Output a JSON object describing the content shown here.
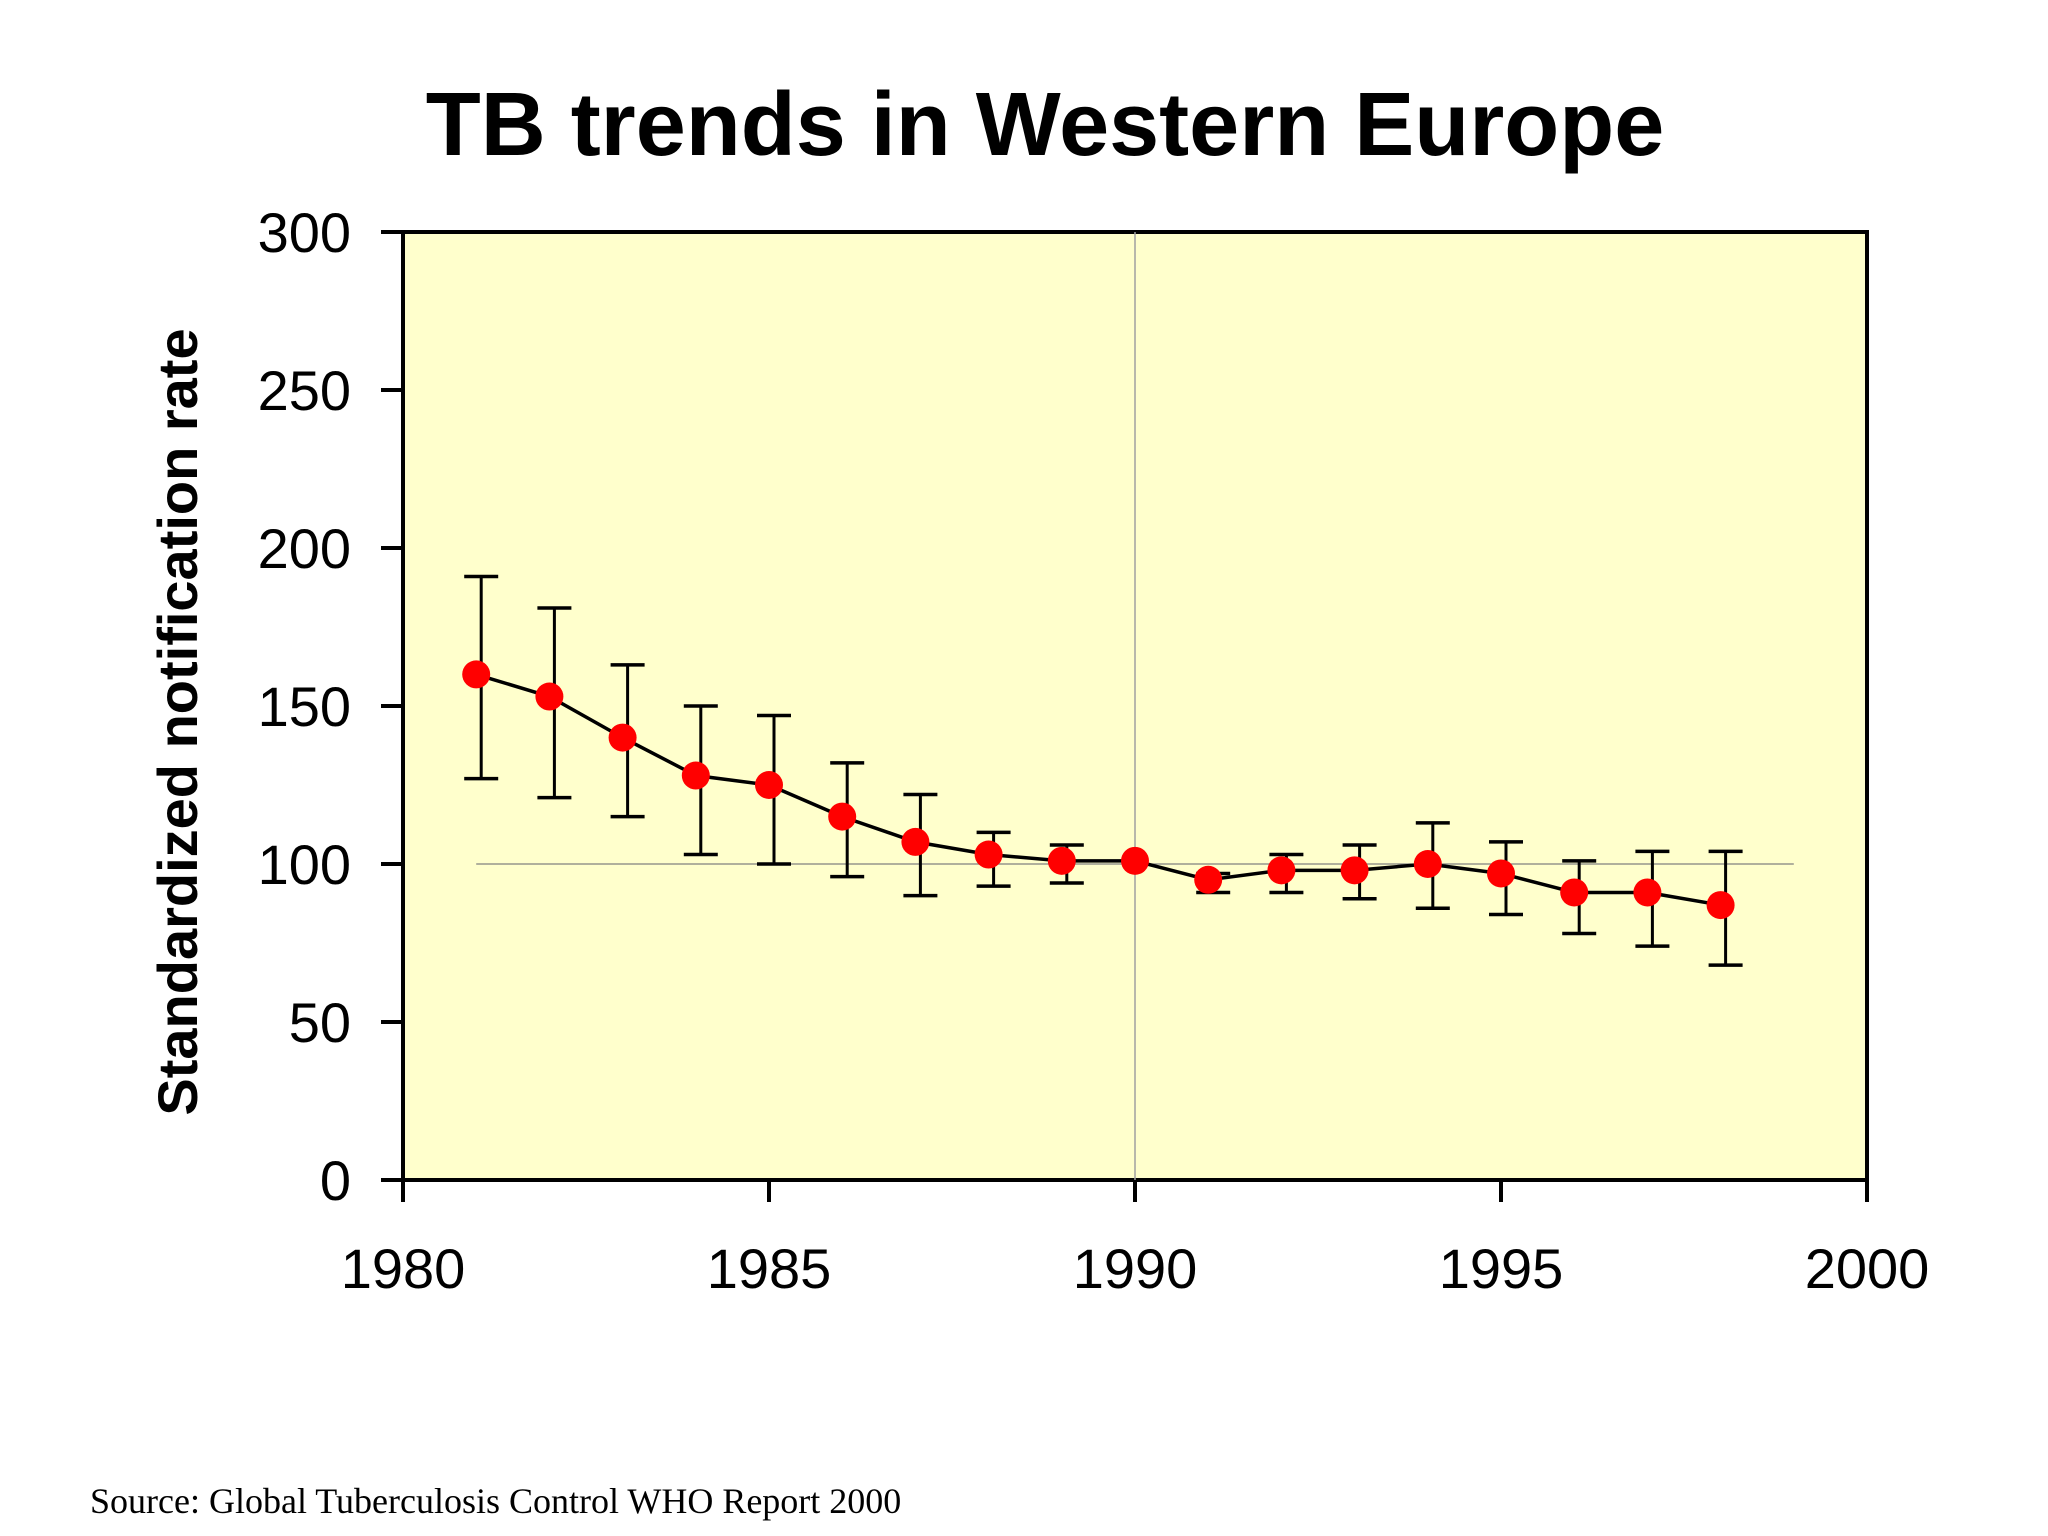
{
  "source": "Source: Global Tuberculosis Control WHO Report 2000",
  "chart_data": {
    "type": "line",
    "title": "TB trends in Western Europe",
    "xlabel": "",
    "ylabel": "Standardized notification rate",
    "xlim": [
      1980,
      2000
    ],
    "ylim": [
      0,
      300
    ],
    "xticks": [
      1980,
      1985,
      1990,
      1995,
      2000
    ],
    "yticks": [
      0,
      50,
      100,
      150,
      200,
      250,
      300
    ],
    "reference_line": 100,
    "reference_year": 1990,
    "background_color": "#ffffcc",
    "marker_color": "#ff0000",
    "line_color": "#000000",
    "grid": false,
    "x": [
      1981,
      1982,
      1983,
      1984,
      1985,
      1986,
      1987,
      1988,
      1989,
      1990,
      1991,
      1992,
      1993,
      1994,
      1995,
      1996,
      1997,
      1998
    ],
    "series": [
      {
        "values": [
          160,
          153,
          140,
          128,
          125,
          115,
          107,
          103,
          101,
          101,
          95,
          98,
          98,
          100,
          97,
          91,
          91,
          87
        ],
        "error_low": [
          127,
          121,
          115,
          103,
          100,
          96,
          90,
          93,
          94,
          101,
          91,
          91,
          89,
          86,
          84,
          78,
          74,
          68
        ],
        "error_high": [
          191,
          181,
          163,
          150,
          147,
          132,
          122,
          110,
          106,
          101,
          97,
          103,
          106,
          113,
          107,
          101,
          104,
          104
        ]
      }
    ]
  }
}
